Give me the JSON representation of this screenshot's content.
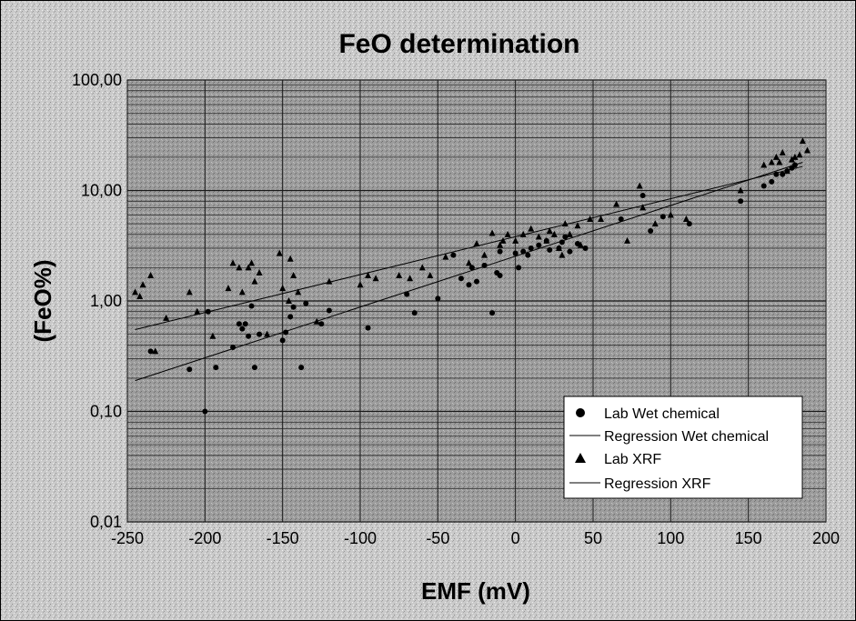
{
  "chart_data": {
    "type": "scatter",
    "title": "FeO determination",
    "xlabel": "EMF (mV)",
    "ylabel": "(FeO%)",
    "xlim": [
      -250,
      200
    ],
    "ylim": [
      0.01,
      100
    ],
    "y_scale": "log",
    "x_ticks": [
      -250,
      -200,
      -150,
      -100,
      -50,
      0,
      50,
      100,
      150,
      200
    ],
    "x_tick_labels": [
      "-250",
      "-200",
      "-150",
      "-100",
      "-50",
      "0",
      "50",
      "100",
      "150",
      "200"
    ],
    "y_ticks": [
      0.01,
      0.1,
      1,
      10,
      100
    ],
    "y_tick_labels": [
      "0,01",
      "0,10",
      "1,00",
      "10,00",
      "100,00"
    ],
    "grid": true,
    "legend_position": "bottom-right",
    "legend": [
      "Lab Wet chemical",
      "Regression Wet chemical",
      "Lab XRF",
      "Regression XRF"
    ],
    "series": [
      {
        "name": "Lab Wet chemical",
        "marker": "circle",
        "x": [
          -235,
          -210,
          -200,
          -198,
          -193,
          -182,
          -178,
          -176,
          -174,
          -172,
          -170,
          -168,
          -165,
          -150,
          -148,
          -145,
          -143,
          -138,
          -135,
          -125,
          -120,
          -95,
          -70,
          -65,
          -50,
          -40,
          -35,
          -30,
          -28,
          -25,
          -20,
          -15,
          -12,
          -10,
          -10,
          0,
          2,
          5,
          8,
          10,
          15,
          20,
          22,
          28,
          30,
          32,
          35,
          40,
          45,
          68,
          82,
          87,
          95,
          112,
          145,
          160,
          165,
          168,
          172,
          175,
          178,
          180
        ],
        "y": [
          0.35,
          0.24,
          0.1,
          0.8,
          0.25,
          0.38,
          0.62,
          0.56,
          0.62,
          0.48,
          0.9,
          0.25,
          0.5,
          0.44,
          0.52,
          0.72,
          0.88,
          0.25,
          0.95,
          0.62,
          0.82,
          0.57,
          1.15,
          0.78,
          1.05,
          2.6,
          1.6,
          1.4,
          2.0,
          1.5,
          2.1,
          0.78,
          1.8,
          1.7,
          2.8,
          2.7,
          2.0,
          2.8,
          2.6,
          3.0,
          3.2,
          3.5,
          2.9,
          3.0,
          3.4,
          3.8,
          2.8,
          3.3,
          3.0,
          5.5,
          9.0,
          4.3,
          5.8,
          5.0,
          8.0,
          11.0,
          12.0,
          14.0,
          14.0,
          15.0,
          16.0,
          17.0
        ]
      },
      {
        "name": "Lab XRF",
        "marker": "triangle",
        "x": [
          -245,
          -242,
          -240,
          -235,
          -232,
          -225,
          -210,
          -205,
          -195,
          -185,
          -182,
          -178,
          -176,
          -172,
          -170,
          -168,
          -165,
          -160,
          -152,
          -150,
          -146,
          -145,
          -143,
          -140,
          -128,
          -120,
          -100,
          -95,
          -90,
          -75,
          -68,
          -60,
          -55,
          -45,
          -30,
          -25,
          -20,
          -15,
          -10,
          -8,
          -5,
          0,
          5,
          10,
          15,
          20,
          22,
          25,
          28,
          30,
          32,
          35,
          40,
          42,
          48,
          55,
          65,
          72,
          80,
          82,
          90,
          100,
          110,
          145,
          160,
          165,
          168,
          170,
          172,
          175,
          178,
          180,
          183,
          185,
          188
        ],
        "y": [
          1.2,
          1.1,
          1.4,
          1.7,
          0.35,
          0.7,
          1.2,
          0.8,
          0.48,
          1.3,
          2.2,
          2.0,
          1.2,
          2.0,
          2.2,
          1.5,
          1.8,
          0.5,
          2.7,
          1.3,
          1.0,
          2.4,
          1.7,
          1.2,
          0.65,
          1.5,
          1.4,
          1.7,
          1.6,
          1.7,
          1.6,
          2.0,
          1.7,
          2.5,
          2.2,
          3.3,
          2.6,
          4.1,
          3.2,
          3.5,
          4.0,
          3.5,
          4.0,
          4.5,
          3.8,
          3.5,
          4.3,
          4.0,
          3.0,
          2.6,
          5.0,
          4.0,
          4.8,
          3.2,
          5.5,
          5.5,
          7.5,
          3.5,
          11.0,
          7.0,
          5.0,
          6.0,
          5.5,
          10.0,
          17.0,
          18.0,
          20.0,
          18.0,
          22.0,
          15.0,
          19.0,
          20.0,
          21.0,
          28.0,
          23.0
        ]
      }
    ],
    "regression_lines": [
      {
        "name": "Regression Wet chemical",
        "x": [
          -245,
          185
        ],
        "y": [
          0.19,
          18.0
        ]
      },
      {
        "name": "Regression XRF",
        "x": [
          -245,
          185
        ],
        "y": [
          0.55,
          16.5
        ]
      }
    ]
  }
}
